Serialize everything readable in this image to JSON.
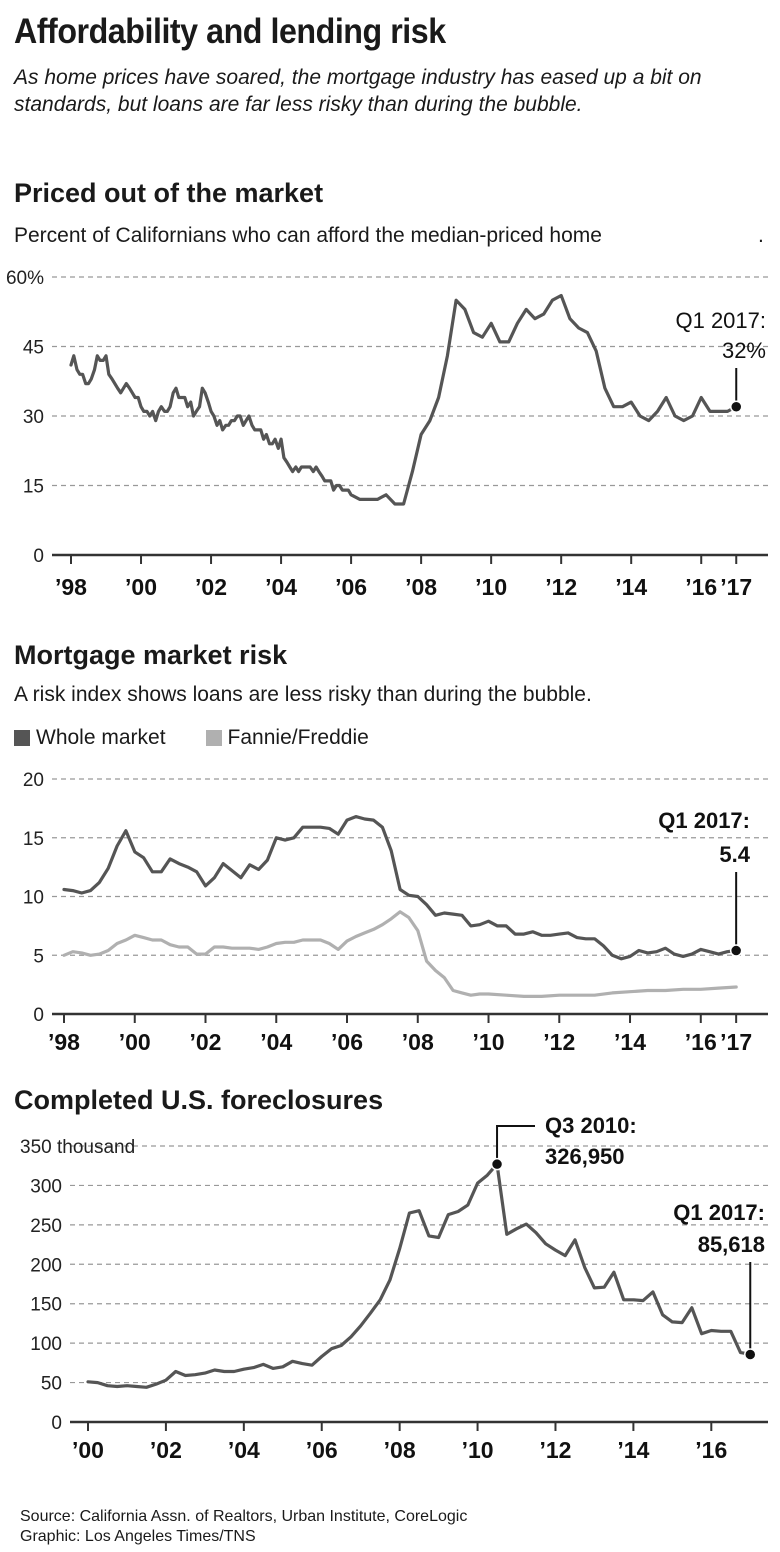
{
  "title": "Affordability and lending risk",
  "subtitle": "As home prices have soared, the mortgage industry has eased up a bit on standards, but loans are far less risky than during the bubble.",
  "source_line": "Source: California Assn. of Realtors, Urban Institute, CoreLogic",
  "credit_line": "Graphic: Los Angeles Times/TNS",
  "chart_data": [
    {
      "id": "priced",
      "type": "line",
      "title": "Priced out of the market",
      "subtitle": "Percent of Californians who can afford the median-priced home",
      "subtitle_mark": ".",
      "xlim": [
        1998,
        2017.25
      ],
      "ylim": [
        0,
        60
      ],
      "yticks": [
        0,
        15,
        30,
        45,
        60
      ],
      "ytick_labels": [
        "0",
        "15",
        "30",
        "45",
        "60%"
      ],
      "xticks": [
        1998,
        2000,
        2002,
        2004,
        2006,
        2008,
        2010,
        2012,
        2014,
        2016,
        2017
      ],
      "xtick_labels": [
        "’98",
        "’00",
        "’02",
        "’04",
        "’06",
        "’08",
        "’10",
        "’12",
        "’14",
        "’16",
        "’17"
      ],
      "grid": true,
      "series": [
        {
          "color": "#555555",
          "x": [
            1998,
            1998.08,
            1998.17,
            1998.25,
            1998.33,
            1998.42,
            1998.5,
            1998.58,
            1998.67,
            1998.75,
            1998.83,
            1998.92,
            1999,
            1999.08,
            1999.17,
            1999.25,
            1999.33,
            1999.42,
            1999.5,
            1999.58,
            1999.67,
            1999.75,
            1999.83,
            1999.92,
            2000,
            2000.08,
            2000.17,
            2000.25,
            2000.33,
            2000.42,
            2000.5,
            2000.58,
            2000.67,
            2000.75,
            2000.83,
            2000.92,
            2001,
            2001.08,
            2001.17,
            2001.25,
            2001.33,
            2001.42,
            2001.5,
            2001.58,
            2001.67,
            2001.75,
            2001.83,
            2001.92,
            2002,
            2002.08,
            2002.17,
            2002.25,
            2002.33,
            2002.42,
            2002.5,
            2002.58,
            2002.67,
            2002.75,
            2002.83,
            2002.92,
            2003,
            2003.08,
            2003.17,
            2003.25,
            2003.33,
            2003.42,
            2003.5,
            2003.58,
            2003.67,
            2003.75,
            2003.83,
            2003.92,
            2004,
            2004.08,
            2004.17,
            2004.25,
            2004.33,
            2004.42,
            2004.5,
            2004.58,
            2004.67,
            2004.75,
            2004.83,
            2004.92,
            2005,
            2005.08,
            2005.17,
            2005.25,
            2005.33,
            2005.42,
            2005.5,
            2005.58,
            2005.67,
            2005.75,
            2005.83,
            2005.92,
            2006,
            2006.25,
            2006.5,
            2006.75,
            2007,
            2007.25,
            2007.5,
            2007.75,
            2008,
            2008.25,
            2008.5,
            2008.75,
            2009,
            2009.25,
            2009.5,
            2009.75,
            2010,
            2010.25,
            2010.5,
            2010.75,
            2011,
            2011.25,
            2011.5,
            2011.75,
            2012,
            2012.25,
            2012.5,
            2012.75,
            2013,
            2013.25,
            2013.5,
            2013.75,
            2014,
            2014.25,
            2014.5,
            2014.75,
            2015,
            2015.25,
            2015.5,
            2015.75,
            2016,
            2016.25,
            2016.5,
            2016.75,
            2017
          ],
          "y": [
            41,
            43,
            40,
            39,
            39,
            37,
            37,
            38,
            40,
            43,
            42,
            42,
            43,
            39,
            38,
            37,
            36,
            35,
            36,
            37,
            36,
            35,
            34,
            34,
            32,
            31,
            31,
            30,
            31,
            29,
            31,
            32,
            31,
            31,
            32,
            35,
            36,
            34,
            34,
            34,
            32,
            33,
            30,
            31,
            32,
            36,
            35,
            33,
            31,
            30,
            28,
            29,
            27,
            28,
            28,
            29,
            29,
            30,
            30,
            28,
            29,
            30,
            28,
            27,
            27,
            27,
            25,
            26,
            24,
            24,
            25,
            23,
            25,
            21,
            20,
            19,
            18,
            19,
            18,
            19,
            19,
            19,
            19,
            18,
            19,
            18,
            17,
            16,
            16,
            16,
            14,
            15,
            15,
            14,
            14,
            14,
            13,
            12,
            12,
            12,
            13,
            11,
            11,
            18,
            26,
            29,
            34,
            43,
            55,
            53,
            48,
            47,
            50,
            46,
            46,
            50,
            53,
            51,
            52,
            55,
            56,
            51,
            49,
            48,
            44,
            36,
            32,
            32,
            33,
            30,
            29,
            31,
            34,
            30,
            29,
            30,
            34,
            31,
            31,
            31,
            32
          ]
        }
      ],
      "annotation": {
        "label": "Q1 2017:",
        "value": "32%",
        "x": 2017,
        "y": 32
      }
    },
    {
      "id": "risk",
      "type": "line",
      "title": "Mortgage market risk",
      "subtitle": "A risk index shows loans are less risky than during the bubble.",
      "xlim": [
        1998,
        2017.25
      ],
      "ylim": [
        0,
        20
      ],
      "yticks": [
        0,
        5,
        10,
        15,
        20
      ],
      "ytick_labels": [
        "0",
        "5",
        "10",
        "15",
        "20"
      ],
      "xticks": [
        1998,
        2000,
        2002,
        2004,
        2006,
        2008,
        2010,
        2012,
        2014,
        2016,
        2017
      ],
      "xtick_labels": [
        "’98",
        "’00",
        "’02",
        "’04",
        "’06",
        "’08",
        "’10",
        "’12",
        "’14",
        "’16",
        "’17"
      ],
      "grid": true,
      "legend_position": "top-left",
      "series": [
        {
          "name": "Whole market",
          "color": "#555555",
          "x": [
            1998,
            1998.25,
            1998.5,
            1998.75,
            1999,
            1999.25,
            1999.5,
            1999.75,
            2000,
            2000.25,
            2000.5,
            2000.75,
            2001,
            2001.25,
            2001.5,
            2001.75,
            2002,
            2002.25,
            2002.5,
            2002.75,
            2003,
            2003.25,
            2003.5,
            2003.75,
            2004,
            2004.25,
            2004.5,
            2004.75,
            2005,
            2005.25,
            2005.5,
            2005.75,
            2006,
            2006.25,
            2006.5,
            2006.75,
            2007,
            2007.25,
            2007.5,
            2007.75,
            2008,
            2008.25,
            2008.5,
            2008.75,
            2009,
            2009.25,
            2009.5,
            2009.75,
            2010,
            2010.25,
            2010.5,
            2010.75,
            2011,
            2011.25,
            2011.5,
            2011.75,
            2012,
            2012.25,
            2012.5,
            2012.75,
            2013,
            2013.25,
            2013.5,
            2013.75,
            2014,
            2014.25,
            2014.5,
            2014.75,
            2015,
            2015.25,
            2015.5,
            2015.75,
            2016,
            2016.25,
            2016.5,
            2016.75,
            2017
          ],
          "y": [
            10.6,
            10.5,
            10.3,
            10.5,
            11.2,
            12.4,
            14.3,
            15.6,
            13.8,
            13.3,
            12.1,
            12.1,
            13.2,
            12.8,
            12.5,
            12.1,
            10.9,
            11.6,
            12.8,
            12.2,
            11.6,
            12.7,
            12.3,
            13.1,
            15.0,
            14.8,
            15.0,
            15.9,
            15.9,
            15.9,
            15.8,
            15.3,
            16.5,
            16.8,
            16.6,
            16.5,
            15.9,
            13.9,
            10.6,
            10.1,
            10.0,
            9.3,
            8.4,
            8.6,
            8.5,
            8.4,
            7.5,
            7.6,
            7.9,
            7.5,
            7.5,
            6.8,
            6.8,
            7.0,
            6.7,
            6.7,
            6.8,
            6.9,
            6.5,
            6.4,
            6.4,
            5.8,
            5.0,
            4.7,
            4.9,
            5.4,
            5.2,
            5.3,
            5.6,
            5.1,
            4.9,
            5.1,
            5.5,
            5.3,
            5.1,
            5.3,
            5.4
          ]
        },
        {
          "name": "Fannie/Freddie",
          "color": "#b0b0b0",
          "x": [
            1998,
            1998.25,
            1998.5,
            1998.75,
            1999,
            1999.25,
            1999.5,
            1999.75,
            2000,
            2000.25,
            2000.5,
            2000.75,
            2001,
            2001.25,
            2001.5,
            2001.75,
            2002,
            2002.25,
            2002.5,
            2002.75,
            2003,
            2003.25,
            2003.5,
            2003.75,
            2004,
            2004.25,
            2004.5,
            2004.75,
            2005,
            2005.25,
            2005.5,
            2005.75,
            2006,
            2006.25,
            2006.5,
            2006.75,
            2007,
            2007.25,
            2007.5,
            2007.75,
            2008,
            2008.25,
            2008.5,
            2008.75,
            2009,
            2009.25,
            2009.5,
            2009.75,
            2010,
            2010.5,
            2011,
            2011.5,
            2012,
            2012.5,
            2013,
            2013.5,
            2014,
            2014.5,
            2015,
            2015.5,
            2016,
            2016.5,
            2017
          ],
          "y": [
            5.0,
            5.3,
            5.2,
            5.0,
            5.1,
            5.4,
            6.0,
            6.3,
            6.7,
            6.5,
            6.3,
            6.3,
            5.9,
            5.7,
            5.7,
            5.1,
            5.1,
            5.7,
            5.7,
            5.6,
            5.6,
            5.6,
            5.5,
            5.7,
            6.0,
            6.1,
            6.1,
            6.3,
            6.3,
            6.3,
            6.0,
            5.5,
            6.2,
            6.6,
            6.9,
            7.2,
            7.6,
            8.1,
            8.7,
            8.2,
            7.1,
            4.5,
            3.7,
            3.1,
            2.0,
            1.8,
            1.6,
            1.7,
            1.7,
            1.6,
            1.5,
            1.5,
            1.6,
            1.6,
            1.6,
            1.8,
            1.9,
            2.0,
            2.0,
            2.1,
            2.1,
            2.2,
            2.3
          ]
        }
      ],
      "annotation": {
        "label": "Q1 2017:",
        "value": "5.4",
        "x": 2017,
        "y": 5.4
      }
    },
    {
      "id": "fore",
      "type": "line",
      "title": "Completed U.S. foreclosures",
      "xlim": [
        2000,
        2017.25
      ],
      "ylim": [
        0,
        350
      ],
      "yticks": [
        0,
        50,
        100,
        150,
        200,
        250,
        300,
        350
      ],
      "ytick_labels": [
        "0",
        "50",
        "100",
        "150",
        "200",
        "250",
        "300",
        "350 thousand"
      ],
      "xticks": [
        2000,
        2002,
        2004,
        2006,
        2008,
        2010,
        2012,
        2014,
        2016
      ],
      "xtick_labels": [
        "’00",
        "’02",
        "’04",
        "’06",
        "’08",
        "’10",
        "’12",
        "’14",
        "’16"
      ],
      "grid": true,
      "series": [
        {
          "color": "#555555",
          "x": [
            2000,
            2000.25,
            2000.5,
            2000.75,
            2001,
            2001.25,
            2001.5,
            2001.75,
            2002,
            2002.25,
            2002.5,
            2002.75,
            2003,
            2003.25,
            2003.5,
            2003.75,
            2004,
            2004.25,
            2004.5,
            2004.75,
            2005,
            2005.25,
            2005.5,
            2005.75,
            2006,
            2006.25,
            2006.5,
            2006.75,
            2007,
            2007.25,
            2007.5,
            2007.75,
            2008,
            2008.25,
            2008.5,
            2008.75,
            2009,
            2009.25,
            2009.5,
            2009.75,
            2010,
            2010.25,
            2010.5,
            2010.75,
            2011,
            2011.25,
            2011.5,
            2011.75,
            2012,
            2012.25,
            2012.5,
            2012.75,
            2013,
            2013.25,
            2013.5,
            2013.75,
            2014,
            2014.25,
            2014.5,
            2014.75,
            2015,
            2015.25,
            2015.5,
            2015.75,
            2016,
            2016.25,
            2016.5,
            2016.75,
            2017
          ],
          "y": [
            51,
            50,
            46,
            45,
            46,
            45,
            44,
            48,
            53,
            64,
            59,
            60,
            62,
            66,
            64,
            64,
            67,
            69,
            73,
            68,
            70,
            77,
            74,
            72,
            83,
            93,
            97,
            108,
            122,
            138,
            155,
            180,
            220,
            265,
            268,
            236,
            234,
            263,
            267,
            275,
            303,
            313,
            327,
            238,
            245,
            251,
            240,
            226,
            218,
            211,
            231,
            196,
            170,
            171,
            190,
            155,
            155,
            154,
            165,
            136,
            127,
            126,
            145,
            112,
            116,
            115,
            115,
            88,
            86
          ]
        }
      ],
      "annotations": [
        {
          "label": "Q3 2010:",
          "value": "326,950",
          "x": 2010.5,
          "y": 326.95
        },
        {
          "label": "Q1 2017:",
          "value": "85,618",
          "x": 2017,
          "y": 85.618
        }
      ]
    }
  ]
}
